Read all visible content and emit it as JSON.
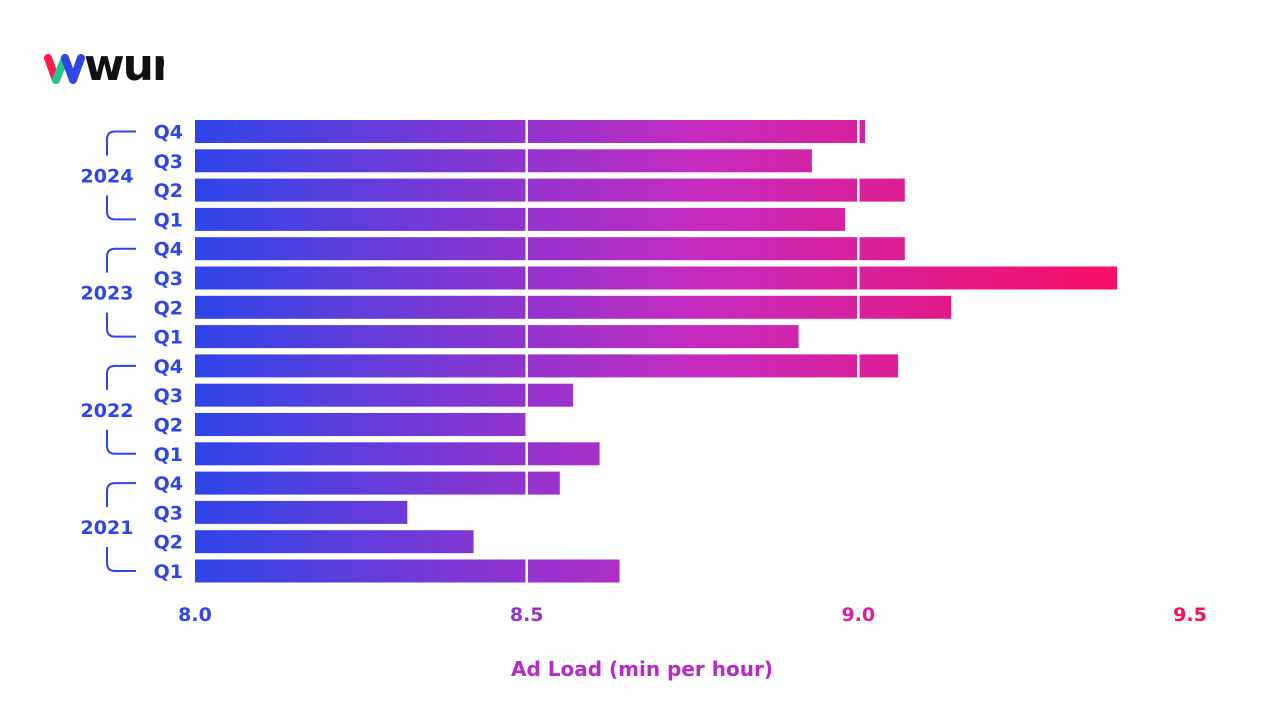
{
  "logo": {
    "text": "wurl",
    "colors": {
      "stroke1": "#FF1A4B",
      "stroke2": "#1FC98C",
      "stroke3": "#2E45E8",
      "text": "#111111"
    }
  },
  "chart_data": {
    "type": "bar",
    "orientation": "horizontal",
    "xlabel": "Ad Load (min per hour)",
    "xlim": [
      8.0,
      9.5
    ],
    "xticks": [
      "8.0",
      "8.5",
      "9.0",
      "9.5"
    ],
    "gridlines_at": [
      8.5,
      9.0
    ],
    "groups": [
      {
        "year": "2024",
        "quarters": [
          {
            "label": "Q4",
            "value": 9.01
          },
          {
            "label": "Q3",
            "value": 8.93
          },
          {
            "label": "Q2",
            "value": 9.07
          },
          {
            "label": "Q1",
            "value": 8.98
          }
        ]
      },
      {
        "year": "2023",
        "quarters": [
          {
            "label": "Q4",
            "value": 9.07
          },
          {
            "label": "Q3",
            "value": 9.39
          },
          {
            "label": "Q2",
            "value": 9.14
          },
          {
            "label": "Q1",
            "value": 8.91
          }
        ]
      },
      {
        "year": "2022",
        "quarters": [
          {
            "label": "Q4",
            "value": 9.06
          },
          {
            "label": "Q3",
            "value": 8.57
          },
          {
            "label": "Q2",
            "value": 8.5
          },
          {
            "label": "Q1",
            "value": 8.61
          }
        ]
      },
      {
        "year": "2021",
        "quarters": [
          {
            "label": "Q4",
            "value": 8.55
          },
          {
            "label": "Q3",
            "value": 8.32
          },
          {
            "label": "Q2",
            "value": 8.42
          },
          {
            "label": "Q1",
            "value": 8.64
          }
        ]
      }
    ],
    "colors": {
      "label_blue": "#2E45E8",
      "gradient_start": "#2E45E8",
      "gradient_mid": "#C42BC0",
      "gradient_end": "#FF0A55",
      "axis_title": "#B52BC6"
    }
  }
}
